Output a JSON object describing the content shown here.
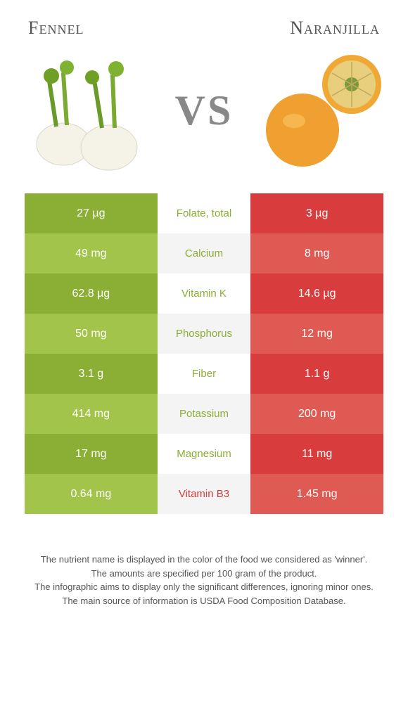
{
  "header": {
    "left_title": "Fennel",
    "right_title": "Naranjilla"
  },
  "vs_text": "VS",
  "colors": {
    "fennel_dark": "#8bae34",
    "fennel_light": "#a3c44a",
    "naranjilla_dark": "#d93c3c",
    "naranjilla_light": "#de5a52",
    "mid_even": "#ffffff",
    "mid_odd": "#f4f4f4",
    "winner_green": "#8bae34",
    "winner_red": "#d93c3c"
  },
  "rows": [
    {
      "left": "27 µg",
      "mid": "Folate, total",
      "right": "3 µg",
      "winner": "left"
    },
    {
      "left": "49 mg",
      "mid": "Calcium",
      "right": "8 mg",
      "winner": "left"
    },
    {
      "left": "62.8 µg",
      "mid": "Vitamin K",
      "right": "14.6 µg",
      "winner": "left"
    },
    {
      "left": "50 mg",
      "mid": "Phosphorus",
      "right": "12 mg",
      "winner": "left"
    },
    {
      "left": "3.1 g",
      "mid": "Fiber",
      "right": "1.1 g",
      "winner": "left"
    },
    {
      "left": "414 mg",
      "mid": "Potassium",
      "right": "200 mg",
      "winner": "left"
    },
    {
      "left": "17 mg",
      "mid": "Magnesium",
      "right": "11 mg",
      "winner": "left"
    },
    {
      "left": "0.64 mg",
      "mid": "Vitamin B3",
      "right": "1.45 mg",
      "winner": "right"
    }
  ],
  "footer": {
    "line1": "The nutrient name is displayed in the color of the food we considered as 'winner'.",
    "line2": "The amounts are specified per 100 gram of the product.",
    "line3": "The infographic aims to display only the significant differences, ignoring minor ones.",
    "line4": "The main source of information is USDA Food Composition Database."
  }
}
